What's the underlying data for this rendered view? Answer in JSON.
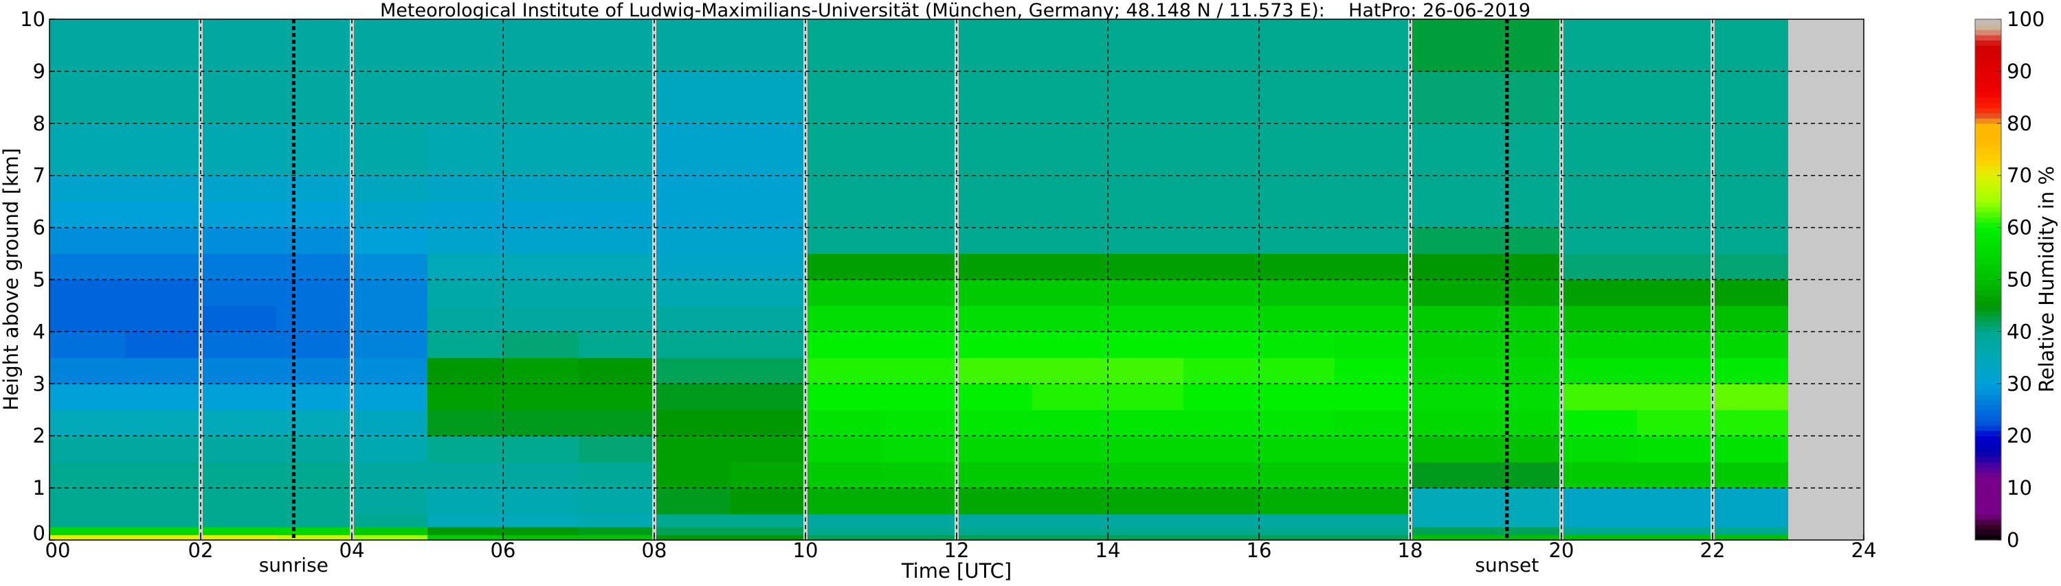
{
  "chart_data": {
    "type": "heatmap",
    "title": "Meteorological Institute of Ludwig-Maximilians-Universität (München, Germany; 48.148 N / 11.573 E):    HatPro: 26-06-2019",
    "xlabel": "Time [UTC]",
    "ylabel": "Height above ground [km]",
    "colorbar_label": "Relative Humidity in %",
    "xlim": [
      0,
      24
    ],
    "ylim": [
      0,
      10
    ],
    "clim": [
      0,
      100
    ],
    "grid": true,
    "x_ticks": [
      "00",
      "02",
      "04",
      "06",
      "08",
      "10",
      "12",
      "14",
      "16",
      "18",
      "20",
      "22",
      "24"
    ],
    "y_ticks": [
      "0",
      "1",
      "2",
      "3",
      "4",
      "5",
      "6",
      "7",
      "8",
      "9",
      "10"
    ],
    "colorbar_ticks": [
      "0",
      "10",
      "20",
      "30",
      "40",
      "50",
      "60",
      "70",
      "80",
      "90",
      "100"
    ],
    "annotations": [
      {
        "label": "sunrise",
        "time": 3.23
      },
      {
        "label": "sunset",
        "time": 19.28
      }
    ],
    "data_gaps_hours": [
      2,
      4,
      8,
      10,
      12,
      18,
      20,
      22
    ],
    "no_data_from_hour": 23,
    "colors": {
      "no_data": "#c8c8c8",
      "gap_line": "#d0d0d0"
    },
    "height_edges_km": [
      0,
      0.1,
      0.25,
      0.5,
      1,
      1.5,
      2,
      2.5,
      3,
      3.5,
      4,
      4.5,
      5,
      5.5,
      6,
      6.5,
      7,
      8,
      9,
      10
    ],
    "time_edges_hours": [
      0,
      1,
      2,
      3,
      4,
      5,
      6,
      7,
      8,
      9,
      10,
      11,
      12,
      13,
      14,
      15,
      16,
      17,
      18,
      19,
      20,
      21,
      22,
      23
    ],
    "relative_humidity_percent": [
      [
        70,
        55,
        40,
        40,
        40,
        38,
        35,
        30,
        27,
        25,
        24,
        24,
        26,
        28,
        30,
        32,
        36,
        38,
        38
      ],
      [
        70,
        55,
        40,
        40,
        40,
        38,
        35,
        30,
        27,
        24,
        24,
        24,
        26,
        28,
        30,
        32,
        36,
        38,
        38
      ],
      [
        70,
        55,
        40,
        40,
        40,
        38,
        35,
        30,
        27,
        25,
        24,
        25,
        26,
        28,
        30,
        32,
        36,
        38,
        38
      ],
      [
        68,
        55,
        40,
        40,
        40,
        38,
        35,
        30,
        27,
        25,
        25,
        25,
        26,
        28,
        30,
        32,
        36,
        38,
        38
      ],
      [
        65,
        52,
        40,
        38,
        38,
        36,
        34,
        30,
        28,
        27,
        27,
        27,
        28,
        30,
        32,
        34,
        37,
        38,
        38
      ],
      [
        52,
        45,
        35,
        36,
        38,
        40,
        44,
        46,
        45,
        40,
        38,
        37,
        35,
        32,
        31,
        33,
        36,
        38,
        38
      ],
      [
        50,
        45,
        35,
        36,
        38,
        40,
        44,
        46,
        46,
        41,
        38,
        37,
        35,
        32,
        31,
        33,
        36,
        38,
        38
      ],
      [
        50,
        44,
        36,
        37,
        39,
        41,
        44,
        46,
        45,
        40,
        38,
        37,
        35,
        32,
        31,
        33,
        36,
        38,
        38
      ],
      [
        45,
        42,
        40,
        44,
        46,
        46,
        45,
        44,
        42,
        40,
        38,
        36,
        33,
        32,
        31,
        31,
        32,
        34,
        38
      ],
      [
        45,
        42,
        40,
        45,
        47,
        46,
        45,
        44,
        42,
        40,
        38,
        36,
        33,
        32,
        31,
        31,
        32,
        34,
        38
      ],
      [
        42,
        40,
        38,
        48,
        52,
        55,
        57,
        60,
        61,
        60,
        56,
        52,
        46,
        40,
        40,
        40,
        40,
        40,
        40
      ],
      [
        42,
        40,
        38,
        48,
        53,
        56,
        58,
        60,
        61,
        60,
        56,
        52,
        46,
        40,
        40,
        40,
        40,
        40,
        40
      ],
      [
        42,
        40,
        38,
        47,
        52,
        55,
        58,
        60,
        62,
        60,
        56,
        52,
        46,
        40,
        40,
        40,
        40,
        40,
        40
      ],
      [
        42,
        40,
        38,
        47,
        52,
        55,
        58,
        61,
        62,
        60,
        56,
        52,
        46,
        40,
        40,
        40,
        40,
        40,
        40
      ],
      [
        42,
        40,
        38,
        47,
        52,
        55,
        58,
        61,
        62,
        60,
        56,
        52,
        46,
        40,
        40,
        40,
        40,
        40,
        40
      ],
      [
        42,
        40,
        38,
        47,
        52,
        55,
        58,
        60,
        61,
        60,
        56,
        52,
        46,
        40,
        40,
        40,
        40,
        40,
        40
      ],
      [
        42,
        40,
        38,
        48,
        52,
        55,
        58,
        60,
        61,
        59,
        55,
        51,
        46,
        40,
        40,
        40,
        40,
        40,
        40
      ],
      [
        42,
        40,
        38,
        48,
        52,
        55,
        57,
        60,
        60,
        58,
        55,
        51,
        46,
        40,
        40,
        40,
        40,
        40,
        40
      ],
      [
        50,
        42,
        35,
        35,
        44,
        50,
        55,
        56,
        55,
        54,
        52,
        47,
        45,
        42,
        40,
        40,
        40,
        41,
        43
      ],
      [
        50,
        42,
        35,
        35,
        44,
        50,
        55,
        56,
        55,
        54,
        52,
        47,
        45,
        42,
        40,
        40,
        40,
        41,
        43
      ],
      [
        50,
        40,
        33,
        33,
        52,
        56,
        60,
        62,
        58,
        55,
        50,
        46,
        41,
        40,
        40,
        40,
        40,
        40,
        40
      ],
      [
        50,
        40,
        33,
        33,
        52,
        57,
        61,
        62,
        58,
        55,
        50,
        46,
        41,
        40,
        40,
        40,
        40,
        40,
        40
      ],
      [
        50,
        40,
        33,
        33,
        52,
        57,
        61,
        63,
        59,
        55,
        50,
        46,
        41,
        40,
        40,
        40,
        40,
        40,
        40
      ]
    ]
  }
}
